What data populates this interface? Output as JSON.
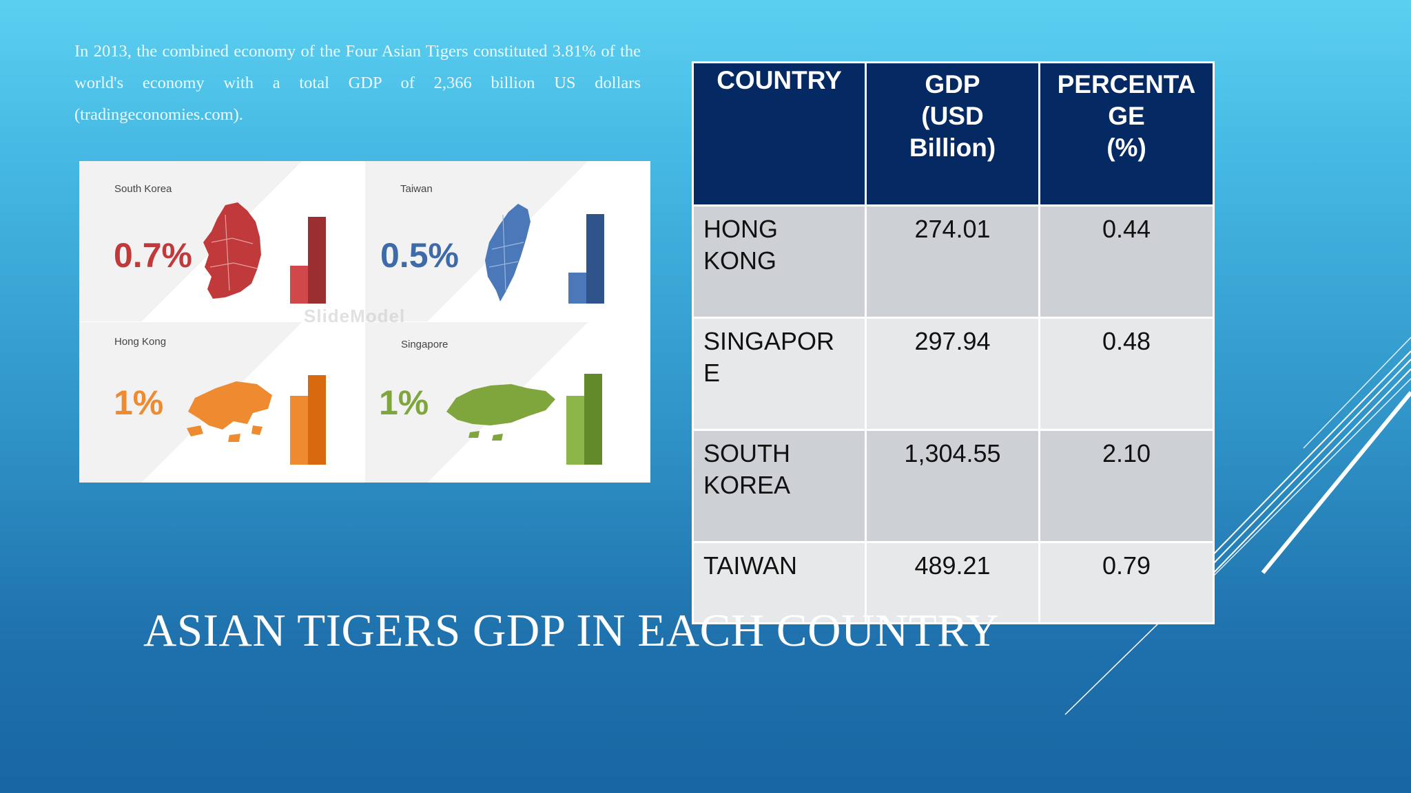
{
  "intro_text": "In 2013, the combined economy of the Four Asian Tigers constituted 3.81% of the world's economy with a total GDP of 2,366 billion US dollars (tradingeconomies.com).",
  "title": "ASIAN TIGERS GDP IN EACH COUNTRY",
  "infographic": {
    "watermark": "SlideModel",
    "panels": [
      {
        "name": "South Korea",
        "percent": "0.7%",
        "color": "#c0393b"
      },
      {
        "name": "Taiwan",
        "percent": "0.5%",
        "color": "#3d6aa8"
      },
      {
        "name": "Hong Kong",
        "percent": "1%",
        "color": "#ee8a30"
      },
      {
        "name": "Singapore",
        "percent": "1%",
        "color": "#7fa63d"
      }
    ]
  },
  "table": {
    "headers": [
      "COUNTRY",
      "GDP (USD Billion)",
      "PERCENTAGE (%)"
    ],
    "header_lines": [
      [
        "COUNTRY"
      ],
      [
        "GDP",
        "(USD",
        "Billion)"
      ],
      [
        "PERCENTA",
        "GE",
        "(%)"
      ]
    ],
    "rows": [
      {
        "country_lines": [
          "HONG",
          "KONG"
        ],
        "gdp": "274.01",
        "percent": "0.44"
      },
      {
        "country_lines": [
          "SINGAPOR",
          "E"
        ],
        "gdp": "297.94",
        "percent": "0.48"
      },
      {
        "country_lines": [
          "SOUTH",
          "KOREA"
        ],
        "gdp": "1,304.55",
        "percent": "2.10"
      },
      {
        "country_lines": [
          "TAIWAN"
        ],
        "gdp": "489.21",
        "percent": "0.79"
      }
    ]
  },
  "colors": {
    "header_bg": "#052a63",
    "row_dark": "#cdd0d4",
    "row_light": "#e7e8ea"
  }
}
